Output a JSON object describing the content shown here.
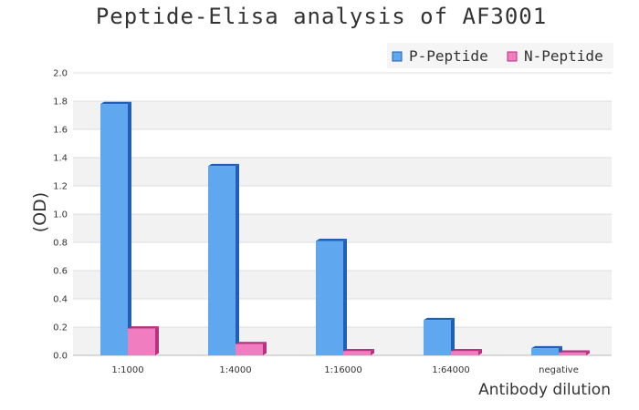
{
  "chart_data": {
    "type": "bar",
    "title": "Peptide-Elisa analysis of AF3001",
    "xlabel": "Antibody dilution",
    "ylabel": "(OD)",
    "categories": [
      "1:1000",
      "1:4000",
      "1:16000",
      "1:64000",
      "negative"
    ],
    "series": [
      {
        "name": "P-Peptide",
        "values": [
          1.78,
          1.34,
          0.81,
          0.25,
          0.05
        ],
        "color": "#5fa8f0",
        "side_color": "#1f5fb8"
      },
      {
        "name": "N-Peptide",
        "values": [
          0.19,
          0.08,
          0.03,
          0.03,
          0.02
        ],
        "color": "#f07dc0",
        "side_color": "#b8307e"
      }
    ],
    "ylim": [
      0,
      2.0
    ],
    "yticks": [
      "0.0",
      "0.2",
      "0.4",
      "0.6",
      "0.8",
      "1.0",
      "1.2",
      "1.4",
      "1.6",
      "1.8",
      "2.0"
    ],
    "grid": true,
    "legend_position": "top-right",
    "band_colors": [
      "#ffffff",
      "#f2f2f2"
    ]
  }
}
